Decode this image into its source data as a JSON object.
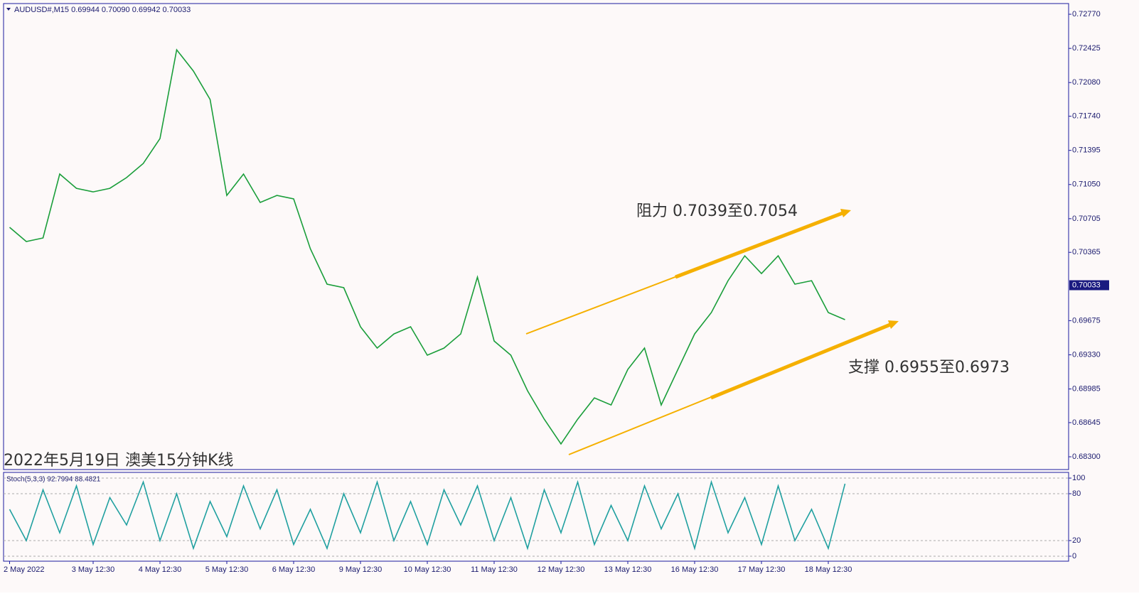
{
  "header": "AUDUSD#,M15  0.69944 0.70090 0.69942 0.70033",
  "chart_data": [
    {
      "type": "line",
      "categories": [
        "2 May 2022",
        null,
        null,
        null,
        null,
        "3 May 12:30",
        null,
        null,
        null,
        "4 May 12:30",
        null,
        null,
        null,
        "5 May 12:30",
        null,
        null,
        null,
        "6 May 12:30",
        null,
        null,
        null,
        "9 May 12:30",
        null,
        null,
        null,
        "10 May 12:30",
        null,
        null,
        null,
        "11 May 12:30",
        null,
        null,
        null,
        "12 May 12:30",
        null,
        null,
        null,
        "13 May 12:30",
        null,
        null,
        null,
        "16 May 12:30",
        null,
        null,
        null,
        "17 May 12:30",
        null,
        null,
        null,
        "18 May 12:30",
        null
      ],
      "series": [
        {
          "color": "#1a9e3a",
          "values": [
            0.70618,
            0.70474,
            0.7051,
            0.71156,
            0.71012,
            0.70976,
            0.71012,
            0.7112,
            0.71263,
            0.71514,
            0.72411,
            0.72196,
            0.71909,
            0.7094,
            0.71156,
            0.70869,
            0.7094,
            0.70905,
            0.70402,
            0.70044,
            0.70008,
            0.69613,
            0.69398,
            0.69541,
            0.69613,
            0.69326,
            0.69398,
            0.69541,
            0.70115,
            0.6947,
            0.69326,
            0.68967,
            0.6868,
            0.68429,
            0.6868,
            0.68895,
            0.68823,
            0.69183,
            0.69398,
            0.68823,
            0.69183,
            0.69541,
            0.69757,
            0.70079,
            0.7033,
            0.70151,
            0.7033,
            0.70044,
            0.70079,
            0.69757,
            0.69685
          ]
        }
      ],
      "ylim": [
        0.72878,
        0.68171
      ],
      "yticks": [
        {
          "value": 0.7277,
          "label": "0.72770"
        },
        {
          "value": 0.72425,
          "label": "0.72425"
        },
        {
          "value": 0.7208,
          "label": "0.72080"
        },
        {
          "value": 0.7174,
          "label": "0.71740"
        },
        {
          "value": 0.71395,
          "label": "0.71395"
        },
        {
          "value": 0.7105,
          "label": "0.71050"
        },
        {
          "value": 0.70705,
          "label": "0.70705"
        },
        {
          "value": 0.70365,
          "label": "0.70365"
        },
        {
          "value": 0.69675,
          "label": "0.69675"
        },
        {
          "value": 0.6933,
          "label": "0.69330"
        },
        {
          "value": 0.68985,
          "label": "0.68985"
        },
        {
          "value": 0.68645,
          "label": "0.68645"
        },
        {
          "value": 0.683,
          "label": "0.68300"
        }
      ],
      "current_price": {
        "value": 0.70033,
        "label": "0.70033"
      },
      "annotations": [
        "阻力 0.7039至0.7054",
        "支撑 0.6955至0.6973"
      ],
      "caption": "2022年5月19日 澳美15分钟K线"
    },
    {
      "type": "line",
      "label": "Stoch(5,3,3) 92.7994 88.4821",
      "series": [
        {
          "color": "#20a0a0",
          "values": [
            60,
            20,
            85,
            30,
            90,
            15,
            75,
            40,
            95,
            20,
            80,
            10,
            70,
            25,
            90,
            35,
            85,
            15,
            60,
            10,
            80,
            30,
            95,
            20,
            70,
            15,
            85,
            40,
            90,
            20,
            75,
            10,
            85,
            30,
            95,
            15,
            65,
            20,
            90,
            35,
            80,
            10,
            95,
            30,
            75,
            15,
            90,
            20,
            60,
            10,
            92.7994
          ]
        }
      ],
      "ylim": [
        107.3,
        -6.4
      ],
      "yticks": [
        100,
        80,
        20,
        0
      ],
      "grid": true
    }
  ]
}
